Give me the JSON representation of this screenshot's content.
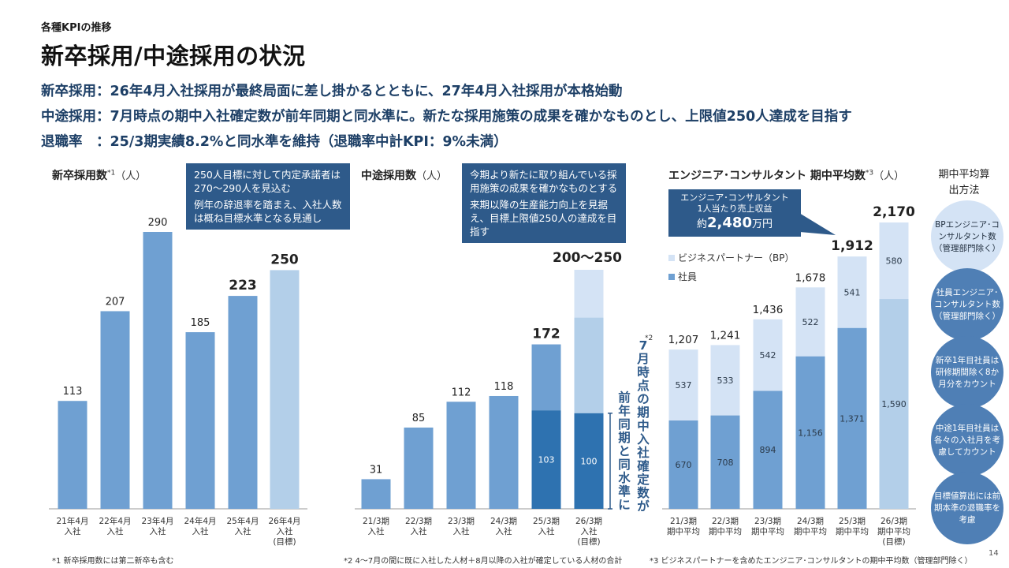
{
  "kicker": "各種KPIの推移",
  "title": "新卒採用/中途採用の状況",
  "summary": [
    "新卒採用：26年4月入社採用が最終局面に差し掛かるとともに、27年4月入社採用が本格始動",
    "中途採用：7月時点の期中入社確定数が前年同期と同水準に。新たな採用施策の成果を確かなものとし、上限値250人達成を目指す",
    "退職率　：25/3期実績8.2%と同水準を維持（退職率中計KPI：9%未満）"
  ],
  "charts": {
    "new_grad": {
      "title": "新卒採用数",
      "sup": "*1",
      "unit": "（人）",
      "callout": [
        "250人目標に対して内定承諾者は270〜290人を見込む",
        "例年の辞退率を踏まえ、入社人数は概ね目標水準となる見通し"
      ]
    },
    "mid_career": {
      "title": "中途採用数",
      "unit": "（人）",
      "callout": [
        "今期より新たに取り組んでいる採用施策の成果を確かなものとする",
        "来期以降の生産能力向上を見据え、目標上限値250人の達成を目指す"
      ],
      "vertical_note": "*2",
      "vertical_text": "7月時点の期中入社確定数が前年同期と同水準に"
    },
    "engineers": {
      "title": "エンジニア･コンサルタント 期中平均数",
      "sup": "*3",
      "unit": "（人）",
      "callout": [
        "エンジニア･コンサルタント",
        "1人当たり売上収益",
        "約",
        "2,480",
        "万円"
      ]
    }
  },
  "side": {
    "title": "期中平均算出方法",
    "items": [
      "BPエンジニア･コンサルタント数（管理部門除く）",
      "社員エンジニア･コンサルタント数（管理部門除く）",
      "新卒1年目社員は研修期間除く8か月分をカウント",
      "中途1年目社員は各々の入社月を考慮してカウント",
      "目標値算出には前期本準の退職率を考慮"
    ]
  },
  "footnotes": [
    "*1 新卒採用数には第二新卒も含む",
    "*2 4〜7月の間に既に入社した人材＋8月以降の入社が確定している人材の合計",
    "*3 ビジネスパートナーを含めたエンジニア･コンサルタントの期中平均数（管理部門除く）"
  ],
  "page_number": "14",
  "colors": {
    "bar": "#6fa0d2",
    "bar_target": "#b3cfe9",
    "bar_dark": "#2e72b0",
    "bar_light": "#d4e3f5",
    "navy": "#2e5a8a"
  },
  "chart_data": [
    {
      "type": "bar",
      "title": "新卒採用数",
      "categories": [
        "21年4月入社",
        "22年4月入社",
        "23年4月入社",
        "24年4月入社",
        "25年4月入社",
        "26年4月入社(目標)"
      ],
      "values": [
        113,
        207,
        290,
        185,
        223,
        250
      ],
      "ylim": [
        0,
        310
      ]
    },
    {
      "type": "bar",
      "title": "中途採用数",
      "categories": [
        "21/3期入社",
        "22/3期入社",
        "23/3期入社",
        "24/3期入社",
        "25/3期入社",
        "26/3期入社(目標)"
      ],
      "values": [
        31,
        85,
        112,
        118,
        172,
        250
      ],
      "totals_text": [
        "31",
        "85",
        "112",
        "118",
        "172",
        "200〜250"
      ],
      "confirmed_by_july": [
        null,
        null,
        null,
        null,
        103,
        100
      ],
      "target_range": [
        200,
        250
      ],
      "ylim": [
        0,
        310
      ]
    },
    {
      "type": "bar",
      "stacked": true,
      "title": "エンジニア･コンサルタント 期中平均数",
      "categories": [
        "21/3期期中平均",
        "22/3期期中平均",
        "23/3期期中平均",
        "24/3期期中平均",
        "25/3期期中平均",
        "26/3期期中平均(目標)"
      ],
      "series": [
        {
          "name": "社員",
          "values": [
            670,
            708,
            894,
            1156,
            1371,
            1590
          ]
        },
        {
          "name": "ビジネスパートナー（BP）",
          "values": [
            537,
            533,
            542,
            522,
            541,
            580
          ]
        }
      ],
      "totals": [
        1207,
        1241,
        1436,
        1678,
        1912,
        2170
      ],
      "ylim": [
        0,
        2400
      ]
    }
  ]
}
